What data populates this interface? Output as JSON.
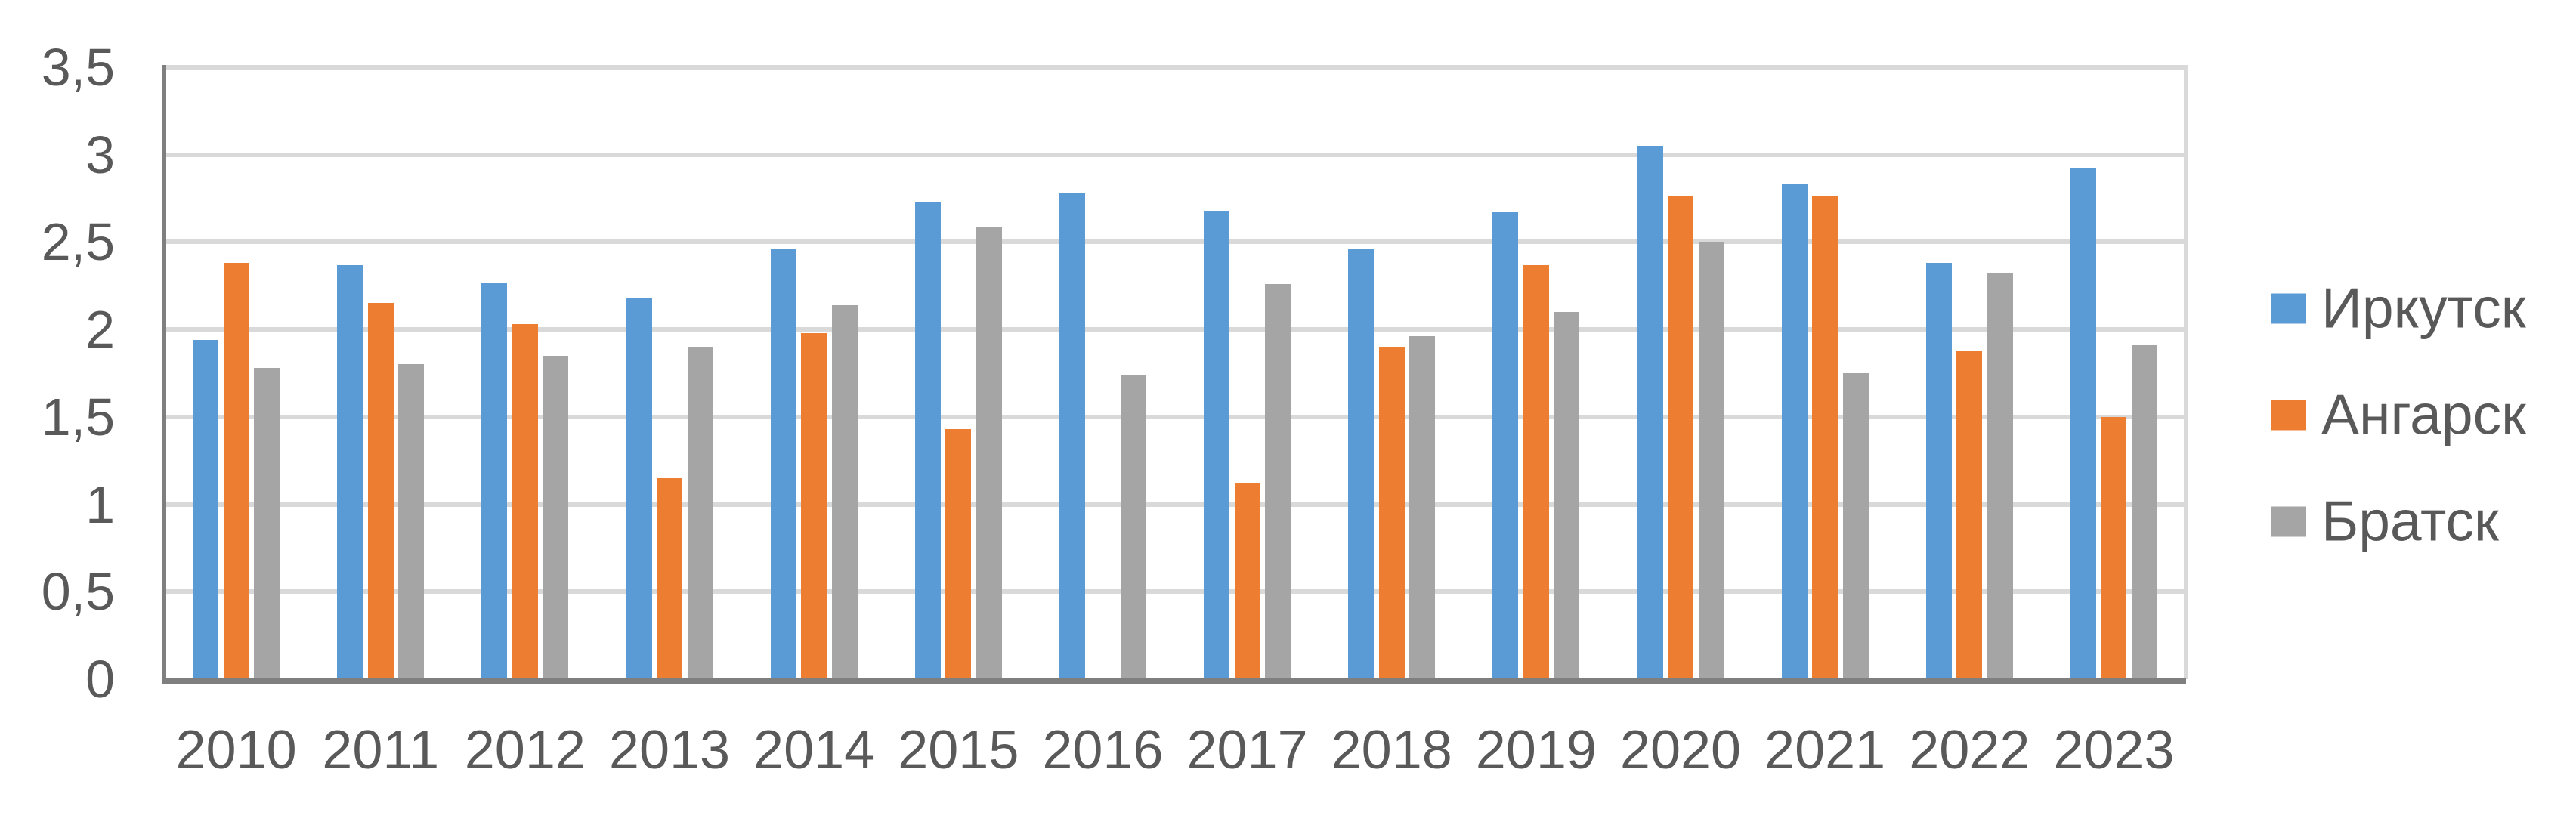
{
  "background": "#ffffff",
  "text_color": "#595959",
  "gridline_color": "#d9d9d9",
  "axis_line_color": "#7f7f7f",
  "chart_data": {
    "type": "bar",
    "categories": [
      "2010",
      "2011",
      "2012",
      "2013",
      "2014",
      "2015",
      "2016",
      "2017",
      "2018",
      "2019",
      "2020",
      "2021",
      "2022",
      "2023"
    ],
    "series": [
      {
        "name": "Иркутск",
        "key": "irkutsk",
        "color": "#5B9BD5",
        "values": [
          1.94,
          2.37,
          2.27,
          2.18,
          2.46,
          2.73,
          2.78,
          2.68,
          2.46,
          2.67,
          3.05,
          2.83,
          2.38,
          2.92
        ]
      },
      {
        "name": "Ангарск",
        "key": "angarsk",
        "color": "#ED7D31",
        "values": [
          2.38,
          2.15,
          2.03,
          1.15,
          1.98,
          1.43,
          null,
          1.12,
          1.9,
          2.37,
          2.76,
          2.76,
          1.88,
          1.5
        ]
      },
      {
        "name": "Братск",
        "key": "bratsk",
        "color": "#A5A5A5",
        "values": [
          1.78,
          1.8,
          1.85,
          1.9,
          2.14,
          2.59,
          1.74,
          2.26,
          1.96,
          2.1,
          2.5,
          1.75,
          2.32,
          1.91
        ]
      }
    ],
    "y_axis": {
      "min": 0,
      "max": 3.5,
      "step": 0.5,
      "tick_labels": [
        "0",
        "0,5",
        "1",
        "1,5",
        "2",
        "2,5",
        "3",
        "3,5"
      ]
    },
    "xlabel": "",
    "ylabel": "",
    "legend_position": "right",
    "grid": true
  }
}
